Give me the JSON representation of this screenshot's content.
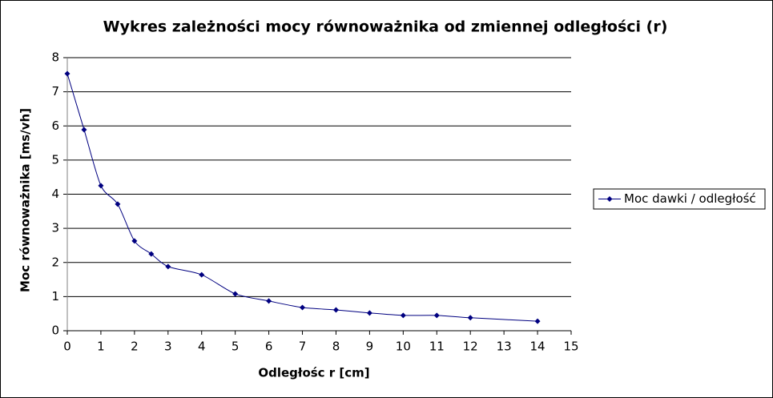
{
  "chart_data": {
    "type": "line",
    "title": "Wykres zależności mocy równoważnika od zmiennej odległości (r)",
    "x_label": "Odległośc r [cm]",
    "y_label": "Moc równoważnika [ms/vh]",
    "x": [
      0,
      0.5,
      1,
      1.5,
      2,
      2.5,
      3,
      4,
      5,
      6,
      7,
      8,
      9,
      10,
      11,
      12,
      14
    ],
    "series": [
      {
        "name": "Moc dawki / odległość",
        "color": "#000080",
        "values": [
          7.53,
          5.89,
          4.25,
          3.71,
          2.63,
          2.25,
          1.88,
          1.64,
          1.08,
          0.87,
          0.68,
          0.61,
          0.52,
          0.45,
          0.45,
          0.38,
          0.28
        ]
      }
    ],
    "xlim": [
      0,
      15
    ],
    "xticks": [
      0,
      1,
      2,
      3,
      4,
      5,
      6,
      7,
      8,
      9,
      10,
      11,
      12,
      13,
      14,
      15
    ],
    "ylim": [
      0,
      8
    ],
    "yticks": [
      0,
      1,
      2,
      3,
      4,
      5,
      6,
      7,
      8
    ],
    "grid": true,
    "smooth": true,
    "legend": "right"
  }
}
